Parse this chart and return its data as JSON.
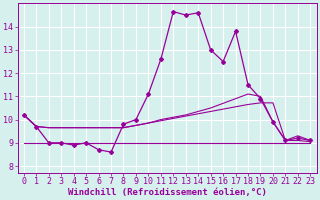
{
  "background_color": "#d6f0ee",
  "grid_color": "#aadddd",
  "line_color": "#990099",
  "xlabel": "Windchill (Refroidissement éolien,°C)",
  "xlabel_fontsize": 6.5,
  "tick_fontsize": 6.0,
  "ylim": [
    7.7,
    15.0
  ],
  "xlim": [
    -0.5,
    23.5
  ],
  "yticks": [
    8,
    9,
    10,
    11,
    12,
    13,
    14
  ],
  "xticks": [
    0,
    1,
    2,
    3,
    4,
    5,
    6,
    7,
    8,
    9,
    10,
    11,
    12,
    13,
    14,
    15,
    16,
    17,
    18,
    19,
    20,
    21,
    22,
    23
  ],
  "series1_x": [
    0,
    1,
    2,
    3,
    4,
    5,
    6,
    7,
    8,
    9,
    10,
    11,
    12,
    13,
    14,
    15,
    16,
    17,
    18,
    19,
    20,
    21,
    22,
    23
  ],
  "series1_y": [
    10.2,
    9.7,
    9.0,
    9.0,
    8.9,
    9.0,
    8.7,
    8.6,
    9.8,
    10.0,
    11.1,
    12.6,
    14.65,
    14.5,
    14.6,
    13.0,
    12.5,
    13.8,
    11.5,
    10.9,
    9.9,
    9.1,
    9.2,
    9.1
  ],
  "series2_x": [
    0,
    1,
    2,
    3,
    4,
    5,
    6,
    7,
    8,
    9,
    10,
    11,
    12,
    13,
    14,
    15,
    16,
    17,
    18,
    19,
    20,
    21,
    22,
    23
  ],
  "series2_y": [
    10.2,
    9.7,
    9.65,
    9.65,
    9.65,
    9.65,
    9.65,
    9.65,
    9.65,
    9.75,
    9.85,
    10.0,
    10.1,
    10.2,
    10.35,
    10.5,
    10.7,
    10.9,
    11.1,
    11.0,
    9.9,
    9.1,
    9.3,
    9.1
  ],
  "series3_x": [
    0,
    1,
    2,
    3,
    4,
    5,
    6,
    7,
    8,
    9,
    10,
    11,
    12,
    13,
    14,
    15,
    16,
    17,
    18,
    19,
    20,
    21,
    22,
    23
  ],
  "series3_y": [
    10.2,
    9.7,
    9.65,
    9.65,
    9.65,
    9.65,
    9.65,
    9.65,
    9.65,
    9.75,
    9.85,
    9.95,
    10.05,
    10.15,
    10.25,
    10.35,
    10.45,
    10.55,
    10.65,
    10.72,
    10.72,
    9.1,
    9.1,
    9.05
  ],
  "series4_x": [
    0,
    1,
    2,
    3,
    4,
    5,
    6,
    7,
    8,
    9,
    10,
    11,
    12,
    13,
    14,
    15,
    16,
    17,
    18,
    19,
    20,
    21,
    22,
    23
  ],
  "series4_y": [
    9.0,
    9.0,
    9.0,
    9.0,
    9.0,
    9.0,
    9.0,
    9.0,
    9.0,
    9.0,
    9.0,
    9.0,
    9.0,
    9.0,
    9.0,
    9.0,
    9.0,
    9.0,
    9.0,
    9.0,
    9.0,
    9.0,
    9.0,
    9.0
  ]
}
